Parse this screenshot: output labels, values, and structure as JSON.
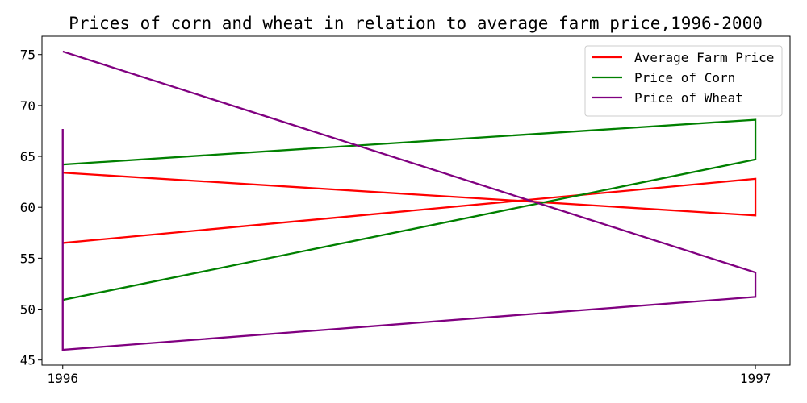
{
  "chart_data": {
    "type": "line",
    "title": "Prices of corn and wheat in relation to average farm price,1996-2000",
    "xlabel": "",
    "ylabel": "",
    "x_ticks": [
      "1996",
      "1997"
    ],
    "y_ticks": [
      45,
      50,
      55,
      60,
      65,
      70,
      75
    ],
    "xlim": [
      1995.97,
      1997.05
    ],
    "ylim": [
      44.5,
      76.8
    ],
    "grid": false,
    "legend_position": "top-right",
    "series": [
      {
        "name": "Average Farm Price",
        "color": "#ff0000",
        "x": [
          1996,
          1997,
          1997,
          1996
        ],
        "y": [
          63.4,
          59.2,
          62.8,
          56.5
        ]
      },
      {
        "name": "Price of Corn",
        "color": "#008000",
        "x": [
          1996,
          1997,
          1997,
          1996
        ],
        "y": [
          64.2,
          68.6,
          64.7,
          50.9
        ]
      },
      {
        "name": "Price of Wheat",
        "color": "#800080",
        "x": [
          1996,
          1996,
          1997,
          1997,
          1996
        ],
        "y": [
          67.7,
          46.0,
          51.2,
          53.6,
          75.3
        ]
      }
    ]
  }
}
